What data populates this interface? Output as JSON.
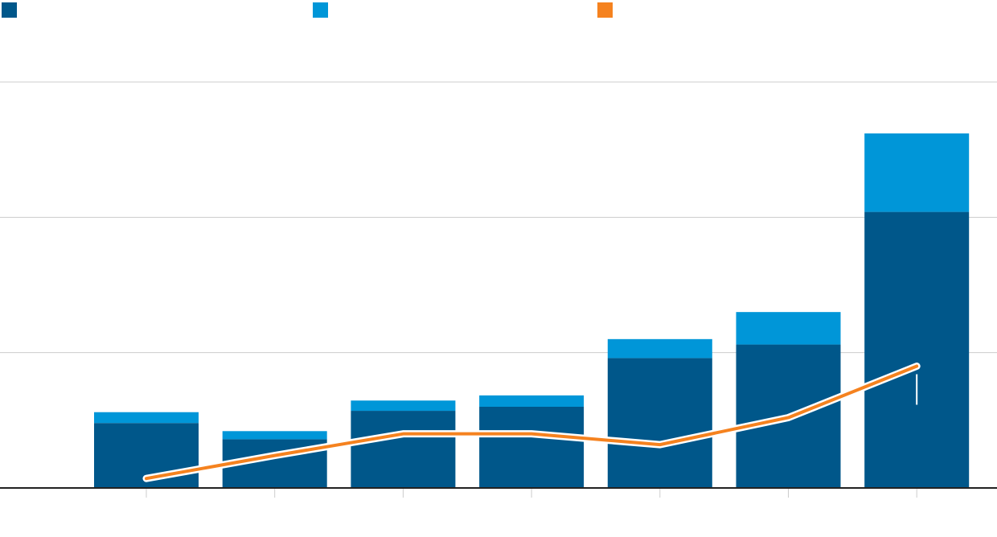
{
  "chart_data": {
    "type": "bar",
    "stacked": true,
    "categories": [
      "",
      "",
      "",
      "",
      "",
      "",
      ""
    ],
    "series": [
      {
        "kind": "bar",
        "color": "#00578a",
        "values": [
          24,
          18,
          28.5,
          30,
          48,
          53,
          102
        ]
      },
      {
        "kind": "bar",
        "color": "#0096d8",
        "values": [
          4,
          3,
          3.8,
          4.2,
          7,
          12,
          29
        ]
      },
      {
        "kind": "line",
        "color": "#f5821f",
        "values": [
          3.5,
          12,
          20,
          20,
          16,
          26,
          45
        ]
      }
    ],
    "ylim": [
      0,
      150
    ],
    "yticks": [
      0,
      50,
      100,
      150
    ],
    "grid": true,
    "legend": {
      "position": "top-left"
    },
    "colors": {
      "grid": "#cccccc",
      "axis": "#222222",
      "highlight": "#ffffff"
    }
  }
}
